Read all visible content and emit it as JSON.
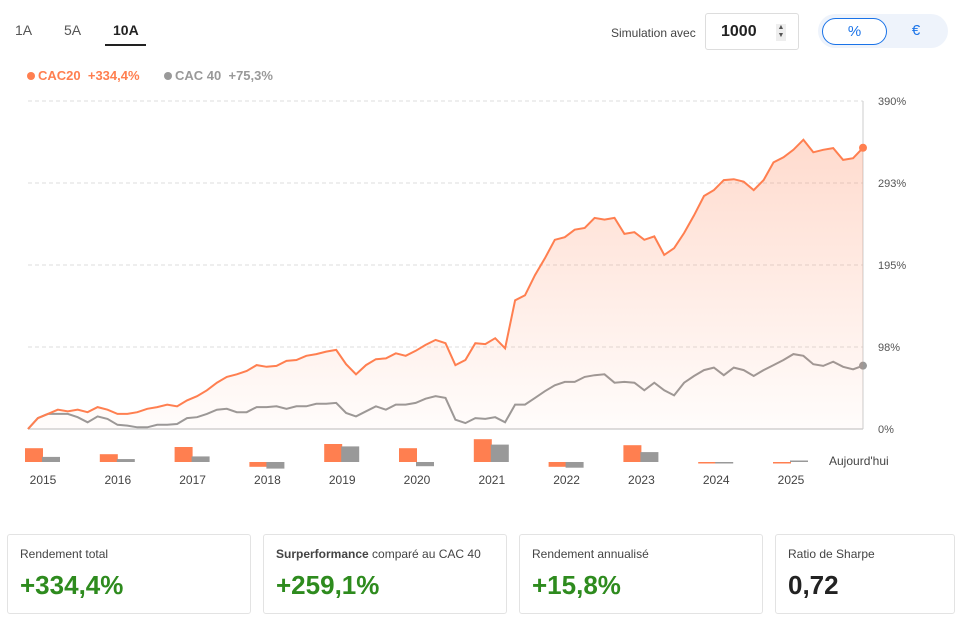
{
  "tabs": [
    {
      "label": "1A"
    },
    {
      "label": "5A"
    },
    {
      "label": "10A"
    }
  ],
  "simulation": {
    "label": "Simulation avec",
    "value": "1000"
  },
  "toggle": {
    "percent": "%",
    "euro": "€"
  },
  "chart_data": {
    "type": "line",
    "legend": [
      {
        "name": "CAC20",
        "value": "+334,4%",
        "color": "#ff7f50"
      },
      {
        "name": "CAC 40",
        "value": "+75,3%",
        "color": "#999999"
      }
    ],
    "y_ticks": [
      "0%",
      "98%",
      "195%",
      "293%",
      "390%"
    ],
    "ylim": [
      0,
      390
    ],
    "x_range": "2015 – Aujourd'hui",
    "series": [
      {
        "name": "CAC20",
        "color": "#ff7f50",
        "values": [
          0,
          13,
          18,
          23,
          21,
          23,
          20,
          26,
          23,
          18,
          18,
          20,
          24,
          26,
          29,
          27,
          34,
          39,
          46,
          55,
          62,
          65,
          69,
          76,
          74,
          75,
          81,
          82,
          87,
          89,
          92,
          94,
          77,
          65,
          76,
          83,
          84,
          90,
          87,
          93,
          100,
          106,
          102,
          76,
          82,
          102,
          101,
          108,
          96,
          153,
          159,
          183,
          203,
          225,
          228,
          237,
          239,
          251,
          249,
          251,
          232,
          234,
          225,
          229,
          207,
          215,
          233,
          254,
          277,
          284,
          296,
          297,
          294,
          284,
          296,
          317,
          323,
          332,
          344,
          329,
          332,
          334,
          320,
          322,
          334.4
        ]
      },
      {
        "name": "CAC 40",
        "color": "#999999",
        "values": [
          0,
          13,
          18,
          18,
          18,
          14,
          8,
          15,
          12,
          5,
          4,
          2,
          2,
          5,
          5,
          6,
          13,
          14,
          18,
          23,
          24,
          20,
          20,
          26,
          26,
          27,
          24,
          27,
          27,
          30,
          30,
          31,
          19,
          15,
          21,
          27,
          23,
          29,
          29,
          31,
          36,
          39,
          37,
          11,
          7,
          13,
          12,
          14,
          8,
          29,
          29,
          37,
          45,
          52,
          56,
          56,
          62,
          64,
          65,
          55,
          56,
          55,
          46,
          55,
          46,
          40,
          55,
          63,
          70,
          73,
          64,
          73,
          70,
          63,
          70,
          76,
          82,
          89,
          87,
          77,
          75,
          80,
          74,
          71,
          75.3
        ]
      }
    ],
    "annual": {
      "years": [
        "2015",
        "2016",
        "2017",
        "2018",
        "2019",
        "2020",
        "2021",
        "2022",
        "2023",
        "2024",
        "2025"
      ],
      "today_label": "Aujourd'hui",
      "CAC20": [
        23,
        13,
        25,
        -8,
        30,
        23,
        38,
        -8,
        28,
        -1,
        -1
      ],
      "CAC40": [
        8.5,
        4.9,
        9.3,
        -11,
        26,
        -7,
        29,
        -9.5,
        16.5,
        -2,
        1
      ]
    }
  },
  "cards": [
    {
      "title": "Rendement total",
      "value": "+334,4%"
    },
    {
      "title_bold": "Surperformance",
      "title_rest": " comparé au CAC 40",
      "value": "+259,1%"
    },
    {
      "title": "Rendement annualisé",
      "value": "+15,8%"
    },
    {
      "title": "Ratio de Sharpe",
      "value": "0,72"
    }
  ]
}
